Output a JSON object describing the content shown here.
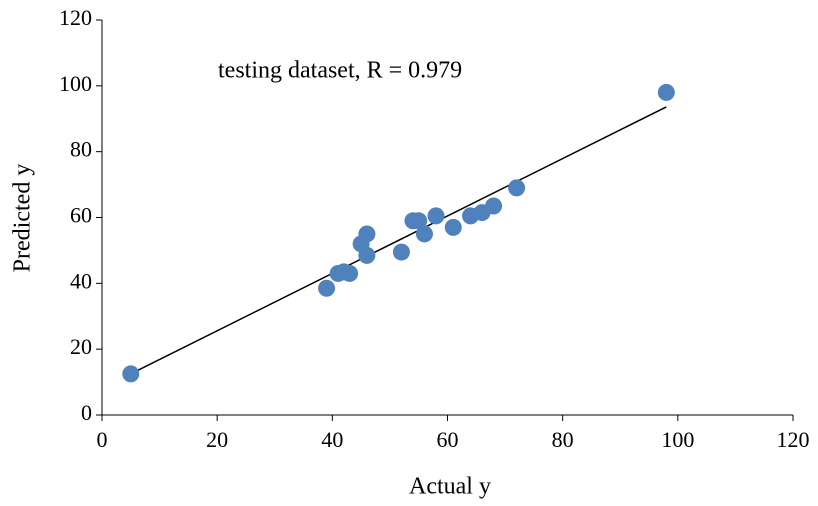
{
  "chart_data": {
    "type": "scatter",
    "annotation": "testing dataset, R = 0.979",
    "x_label": "Actual y",
    "y_label": "Predicted y",
    "series": [
      {
        "color": "#4f81bd",
        "x": [
          5,
          39,
          41,
          42,
          43,
          45,
          46,
          46,
          52,
          54,
          55,
          56,
          58,
          61,
          64,
          66,
          68,
          72,
          98
        ],
        "values": [
          12.5,
          38.5,
          43,
          43.5,
          43,
          52,
          55,
          48.5,
          49.5,
          59,
          59,
          55,
          60.5,
          57,
          60.5,
          61.5,
          63.5,
          69,
          98
        ]
      }
    ],
    "trendline": {
      "x": [
        5,
        98
      ],
      "values": [
        12.5,
        93.6
      ],
      "color": "#000000"
    },
    "xlim": [
      0,
      120
    ],
    "xticks": [
      0,
      20,
      40,
      60,
      80,
      100,
      120
    ],
    "ylim": [
      0,
      120
    ],
    "yticks": [
      0,
      20,
      40,
      60,
      80,
      100,
      120
    ]
  }
}
